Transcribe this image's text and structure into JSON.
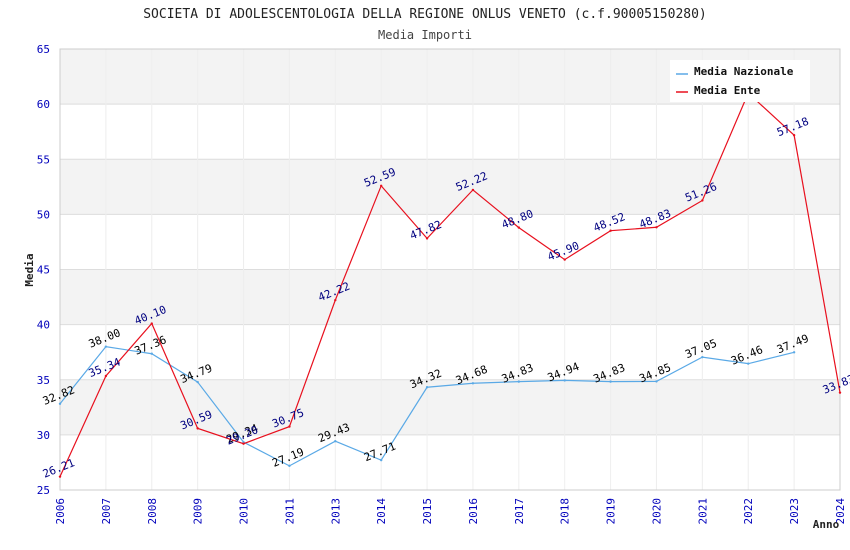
{
  "chart_data": {
    "type": "line",
    "title": "SOCIETA DI ADOLESCENTOLOGIA DELLA REGIONE ONLUS VENETO (c.f.90005150280)",
    "subtitle": "Media Importi",
    "xlabel": "Anno",
    "ylabel": "Media",
    "ylim": [
      25,
      65
    ],
    "yticks": [
      "25",
      "30",
      "35",
      "40",
      "45",
      "50",
      "55",
      "60",
      "65"
    ],
    "categories": [
      "2006",
      "2007",
      "2008",
      "2009",
      "2010",
      "2011",
      "2013",
      "2014",
      "2015",
      "2016",
      "2017",
      "2018",
      "2019",
      "2020",
      "2021",
      "2022",
      "2023",
      "2024"
    ],
    "legend_position": "top-right",
    "series": [
      {
        "name": "Media Nazionale",
        "color": "#5aa9e6",
        "label_color": "#000000",
        "values": [
          32.82,
          38.0,
          37.36,
          34.79,
          29.34,
          27.19,
          29.43,
          27.71,
          34.32,
          34.68,
          34.83,
          34.94,
          34.83,
          34.85,
          37.05,
          36.46,
          37.49,
          null
        ],
        "labels": [
          "32.82",
          "38.00",
          "37.36",
          "34.79",
          "29.34",
          "27.19",
          "29.43",
          "27.71",
          "34.32",
          "34.68",
          "34.83",
          "34.94",
          "34.83",
          "34.85",
          "37.05",
          "36.46",
          "37.49",
          null
        ]
      },
      {
        "name": "Media Ente",
        "color": "#e8101e",
        "label_color": "#000080",
        "values": [
          26.21,
          35.34,
          40.1,
          30.59,
          29.2,
          30.75,
          42.22,
          52.59,
          47.82,
          52.22,
          48.8,
          45.9,
          48.52,
          48.83,
          51.26,
          61.0,
          57.18,
          33.83
        ],
        "labels": [
          "26.21",
          "35.34",
          "40.10",
          "30.59",
          "29.20",
          "30.75",
          "42.22",
          "52.59",
          "47.82",
          "52.22",
          "48.80",
          "45.90",
          "48.52",
          "48.83",
          "51.26",
          null,
          "57.18",
          "33.83"
        ]
      }
    ]
  }
}
